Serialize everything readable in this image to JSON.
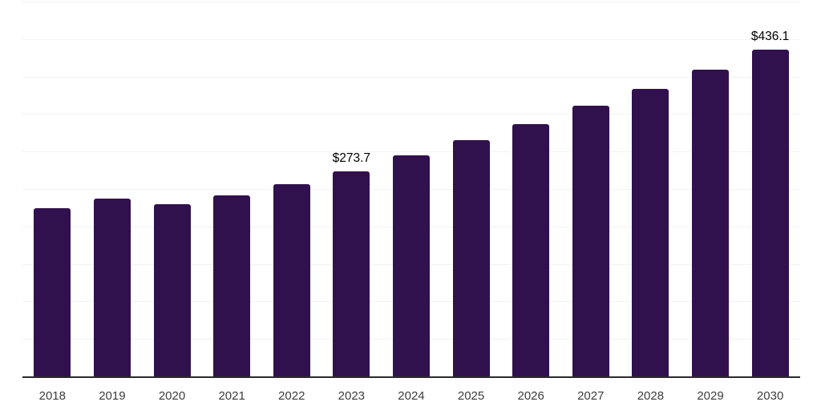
{
  "chart_data": {
    "type": "bar",
    "title": "",
    "categories": [
      "2018",
      "2019",
      "2020",
      "2021",
      "2022",
      "2023",
      "2024",
      "2025",
      "2026",
      "2027",
      "2028",
      "2029",
      "2030"
    ],
    "values": [
      224,
      237,
      230,
      242,
      256,
      273.7,
      295,
      315,
      337,
      361,
      384,
      409,
      436.1
    ],
    "data_labels": {
      "2023": "$273.7",
      "2030": "$436.1"
    },
    "xlabel": "",
    "ylabel": "",
    "ylim": [
      0,
      500
    ],
    "grid_step": 50,
    "grid": "horizontal",
    "legend": "none",
    "colors": {
      "bar": "#31114D",
      "gridline": "#F2F2F2",
      "axis_line": "#2A2A2A",
      "tick_label": "#3C3C3C",
      "data_label": "#000000",
      "background": "#FFFFFF"
    }
  }
}
